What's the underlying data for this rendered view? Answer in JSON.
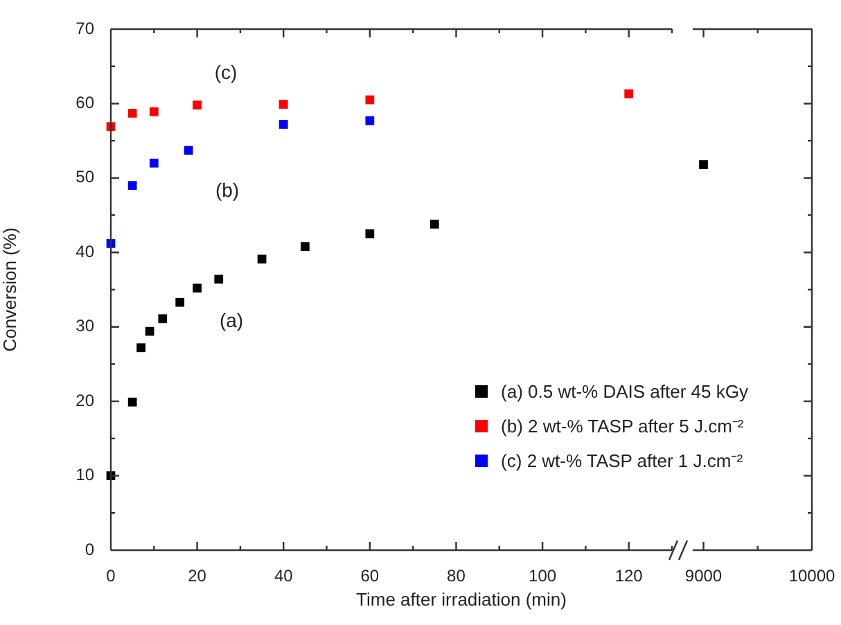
{
  "chart_data": [
    {
      "type": "scatter",
      "xlabel": "Time after irradiation (min)",
      "ylabel": "Conversion (%)",
      "xlim": [
        0,
        130
      ],
      "xticks": [
        0,
        {
          "value": 10,
          "label": null
        },
        20,
        {
          "value": 30,
          "label": null
        },
        40,
        {
          "value": 50,
          "label": null
        },
        60,
        {
          "value": 70,
          "label": null
        },
        80,
        {
          "value": 90,
          "label": null
        },
        100,
        {
          "value": 110,
          "label": null
        },
        120,
        {
          "value": 130,
          "label": null
        }
      ],
      "ylim": [
        0,
        70
      ],
      "yticks": [
        0,
        {
          "value": 5,
          "label": null
        },
        10,
        {
          "value": 15,
          "label": null
        },
        20,
        {
          "value": 25,
          "label": null
        },
        30,
        {
          "value": 35,
          "label": null
        },
        40,
        {
          "value": 45,
          "label": null
        },
        50,
        {
          "value": 55,
          "label": null
        },
        60,
        {
          "value": 65,
          "label": null
        },
        70
      ],
      "marker": "square",
      "legend": "bottom right",
      "annotations": [
        "(c)",
        "(b)",
        "(a)"
      ],
      "series": [
        {
          "name": "(a) 0.5 wt-% DAIS after 45 kGy",
          "color": "#000000",
          "x": [
            0,
            5,
            7,
            9,
            12,
            16,
            20,
            25,
            35,
            45,
            60,
            75
          ],
          "values": [
            10.0,
            19.9,
            27.2,
            29.4,
            31.1,
            33.3,
            35.2,
            36.4,
            39.1,
            40.8,
            42.5,
            43.8
          ]
        },
        {
          "name": "(b) 2 wt-% TASP after 5 J.cm⁻²",
          "color": "#ff0000",
          "x": [
            0,
            5,
            10,
            20,
            40,
            60,
            120
          ],
          "values": [
            56.9,
            58.7,
            58.9,
            59.8,
            59.9,
            60.5,
            61.3
          ]
        },
        {
          "name": "(c) 2 wt-% TASP after 1 J.cm⁻²",
          "color": "#0000ff",
          "x": [
            0,
            5,
            10,
            18,
            40,
            60
          ],
          "values": [
            41.2,
            49.0,
            52.0,
            53.7,
            57.2,
            57.7
          ]
        }
      ]
    },
    {
      "type": "scatter",
      "xlim": [
        8900,
        10000
      ],
      "xticks": [
        9000,
        {
          "value": 9500,
          "label": null
        },
        10000
      ],
      "ylim": [
        0,
        70
      ],
      "yticks": [
        0,
        {
          "value": 5,
          "label": null
        },
        10,
        {
          "value": 15,
          "label": null
        },
        20,
        {
          "value": 25,
          "label": null
        },
        30,
        {
          "value": 35,
          "label": null
        },
        40,
        {
          "value": 45,
          "label": null
        },
        50,
        {
          "value": 55,
          "label": null
        },
        60,
        {
          "value": 65,
          "label": null
        },
        70
      ],
      "tick_labels": "x",
      "marker": "square",
      "series": [
        {
          "color": "#000000",
          "x": [
            9000
          ],
          "values": [
            51.8
          ]
        }
      ]
    }
  ]
}
